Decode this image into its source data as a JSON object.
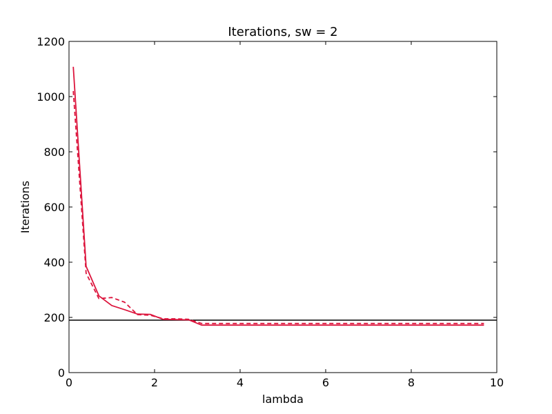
{
  "chart_data": {
    "type": "line",
    "title": "Iterations, sw = 2",
    "xlabel": "lambda",
    "ylabel": "Iterations",
    "xlim": [
      0,
      10
    ],
    "ylim": [
      0,
      1200
    ],
    "xticks": [
      0,
      2,
      4,
      6,
      8,
      10
    ],
    "yticks": [
      0,
      200,
      400,
      600,
      800,
      1000,
      1200
    ],
    "grid": false,
    "legend": "none",
    "series": [
      {
        "style": "solid",
        "color": "#dc143c",
        "x": [
          0.1,
          0.4,
          0.7,
          1.0,
          1.3,
          1.6,
          1.9,
          2.2,
          2.5,
          2.8,
          3.1,
          3.4,
          3.7,
          4.0,
          4.3,
          4.6,
          4.9,
          5.2,
          5.5,
          5.8,
          6.1,
          6.4,
          6.7,
          7.0,
          7.3,
          7.6,
          7.9,
          8.2,
          8.5,
          8.8,
          9.1,
          9.4,
          9.7
        ],
        "y": [
          1108,
          385,
          278,
          243,
          228,
          212,
          211,
          193,
          192,
          191,
          172,
          172,
          172,
          172,
          172,
          172,
          172,
          172,
          172,
          172,
          172,
          172,
          172,
          172,
          172,
          172,
          172,
          172,
          172,
          172,
          172,
          172,
          172
        ]
      },
      {
        "style": "dashed",
        "color": "#dc143c",
        "x": [
          0.1,
          0.4,
          0.7,
          1.0,
          1.3,
          1.6,
          1.9,
          2.2,
          2.5,
          2.8,
          3.1,
          3.4,
          3.7,
          4.0,
          4.3,
          4.6,
          4.9,
          5.2,
          5.5,
          5.8,
          6.1,
          6.4,
          6.7,
          7.0,
          7.3,
          7.6,
          7.9,
          8.2,
          8.5,
          8.8,
          9.1,
          9.4,
          9.7
        ],
        "y": [
          1020,
          360,
          268,
          272,
          255,
          210,
          208,
          195,
          195,
          193,
          178,
          178,
          178,
          178,
          178,
          178,
          178,
          178,
          178,
          178,
          178,
          178,
          178,
          178,
          178,
          178,
          178,
          178,
          178,
          178,
          178,
          178,
          178
        ]
      }
    ],
    "hlines": [
      {
        "y": 190,
        "color": "#000000"
      }
    ]
  }
}
